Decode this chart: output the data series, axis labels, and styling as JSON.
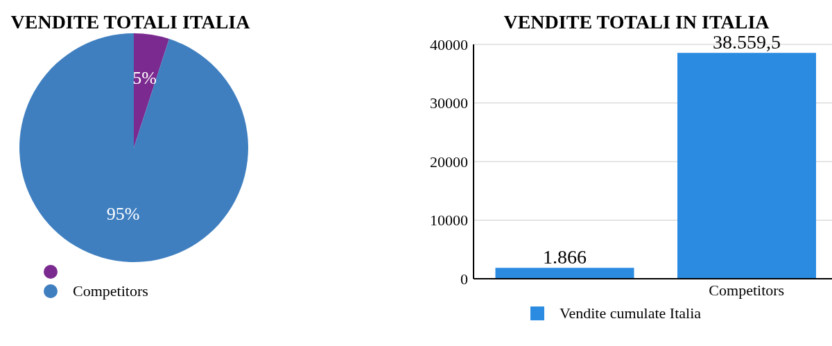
{
  "chart_data": [
    {
      "type": "pie",
      "title": "VENDITE TOTALI ITALIA",
      "categories": [
        null,
        "Competitors"
      ],
      "values": [
        5,
        95
      ],
      "colors": [
        "#7b2a8f",
        "#3f7fc0"
      ],
      "value_labels": [
        "5%",
        "95%"
      ],
      "legend": "bottom left"
    },
    {
      "type": "bar",
      "title": "VENDITE TOTALI IN ITALIA",
      "categories": [
        null,
        "Competitors"
      ],
      "series": [
        {
          "name": "Vendite cumulate Italia",
          "color": "#2b8be0",
          "values": [
            1866,
            38559.5
          ],
          "value_labels": [
            "1.866",
            "38.559,5"
          ]
        }
      ],
      "ylim": [
        0,
        40000
      ],
      "yticks": [
        0,
        10000,
        20000,
        30000,
        40000
      ],
      "grid": "y",
      "legend": "bottom"
    }
  ]
}
